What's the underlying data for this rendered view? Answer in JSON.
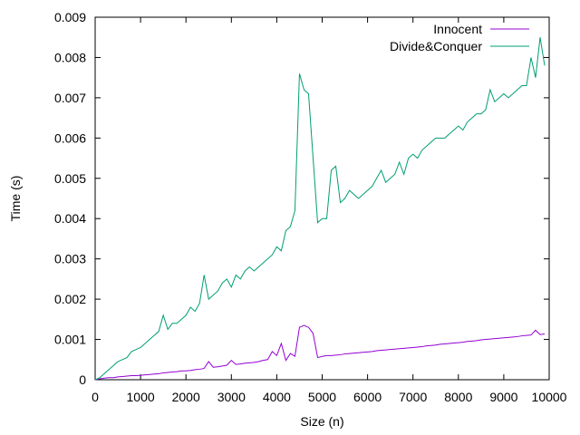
{
  "chart_data": {
    "type": "line",
    "title": "",
    "xlabel": "Size (n)",
    "ylabel": "Time (s)",
    "xlim": [
      0,
      10000
    ],
    "ylim": [
      0,
      0.009
    ],
    "xticks": [
      "0",
      "1000",
      "2000",
      "3000",
      "4000",
      "5000",
      "6000",
      "7000",
      "8000",
      "9000",
      "10000"
    ],
    "yticks": [
      "0",
      "0.001",
      "0.002",
      "0.003",
      "0.004",
      "0.005",
      "0.006",
      "0.007",
      "0.008",
      "0.009"
    ],
    "grid": false,
    "legend_position": "top-right",
    "series": [
      {
        "name": "Innocent",
        "color": "#9400d3",
        "points": [
          [
            0,
            0
          ],
          [
            100,
            2e-05
          ],
          [
            200,
            4e-05
          ],
          [
            300,
            5e-05
          ],
          [
            400,
            5e-05
          ],
          [
            500,
            7e-05
          ],
          [
            600,
            8e-05
          ],
          [
            700,
            9e-05
          ],
          [
            800,
            0.0001
          ],
          [
            900,
            0.0001
          ],
          [
            1000,
            0.00011
          ],
          [
            1100,
            0.00012
          ],
          [
            1200,
            0.00013
          ],
          [
            1300,
            0.00014
          ],
          [
            1400,
            0.00015
          ],
          [
            1500,
            0.00017
          ],
          [
            1600,
            0.00018
          ],
          [
            1700,
            0.00019
          ],
          [
            1800,
            0.0002
          ],
          [
            1900,
            0.00022
          ],
          [
            2000,
            0.00022
          ],
          [
            2100,
            0.00023
          ],
          [
            2200,
            0.00025
          ],
          [
            2300,
            0.00026
          ],
          [
            2400,
            0.00028
          ],
          [
            2500,
            0.00045
          ],
          [
            2600,
            0.00031
          ],
          [
            2700,
            0.00032
          ],
          [
            2800,
            0.00034
          ],
          [
            2900,
            0.00036
          ],
          [
            3000,
            0.00048
          ],
          [
            3100,
            0.00038
          ],
          [
            3200,
            0.00039
          ],
          [
            3300,
            0.00041
          ],
          [
            3400,
            0.00042
          ],
          [
            3500,
            0.00043
          ],
          [
            3600,
            0.00045
          ],
          [
            3700,
            0.00048
          ],
          [
            3800,
            0.0005
          ],
          [
            3900,
            0.0007
          ],
          [
            4000,
            0.0006
          ],
          [
            4100,
            0.0009
          ],
          [
            4200,
            0.00048
          ],
          [
            4300,
            0.00065
          ],
          [
            4400,
            0.00058
          ],
          [
            4500,
            0.0013
          ],
          [
            4600,
            0.00135
          ],
          [
            4700,
            0.0013
          ],
          [
            4800,
            0.00115
          ],
          [
            4900,
            0.00055
          ],
          [
            5000,
            0.00058
          ],
          [
            5100,
            0.0006
          ],
          [
            5200,
            0.0006
          ],
          [
            5300,
            0.00061
          ],
          [
            5400,
            0.00062
          ],
          [
            5500,
            0.00064
          ],
          [
            5600,
            0.00065
          ],
          [
            5700,
            0.00066
          ],
          [
            5800,
            0.00067
          ],
          [
            5900,
            0.00068
          ],
          [
            6000,
            0.00069
          ],
          [
            6100,
            0.0007
          ],
          [
            6200,
            0.00072
          ],
          [
            6300,
            0.00073
          ],
          [
            6400,
            0.00074
          ],
          [
            6500,
            0.00075
          ],
          [
            6600,
            0.00076
          ],
          [
            6700,
            0.00077
          ],
          [
            6800,
            0.00078
          ],
          [
            6900,
            0.00079
          ],
          [
            7000,
            0.0008
          ],
          [
            7100,
            0.00081
          ],
          [
            7200,
            0.00082
          ],
          [
            7300,
            0.00084
          ],
          [
            7400,
            0.00085
          ],
          [
            7500,
            0.00086
          ],
          [
            7600,
            0.00088
          ],
          [
            7700,
            0.00089
          ],
          [
            7800,
            0.0009
          ],
          [
            7900,
            0.00091
          ],
          [
            8000,
            0.00092
          ],
          [
            8100,
            0.00093
          ],
          [
            8200,
            0.00095
          ],
          [
            8300,
            0.00096
          ],
          [
            8400,
            0.00097
          ],
          [
            8500,
            0.00099
          ],
          [
            8600,
            0.001
          ],
          [
            8700,
            0.00101
          ],
          [
            8800,
            0.00102
          ],
          [
            8900,
            0.00103
          ],
          [
            9000,
            0.00104
          ],
          [
            9100,
            0.00105
          ],
          [
            9200,
            0.00106
          ],
          [
            9300,
            0.00107
          ],
          [
            9400,
            0.00109
          ],
          [
            9500,
            0.0011
          ],
          [
            9600,
            0.00111
          ],
          [
            9700,
            0.00123
          ],
          [
            9800,
            0.00112
          ],
          [
            9900,
            0.00114
          ]
        ]
      },
      {
        "name": "Divide&Conquer",
        "color": "#009e73",
        "points": [
          [
            0,
            0
          ],
          [
            100,
            5e-05
          ],
          [
            200,
            0.00015
          ],
          [
            300,
            0.00025
          ],
          [
            400,
            0.00035
          ],
          [
            500,
            0.00045
          ],
          [
            600,
            0.0005
          ],
          [
            700,
            0.00055
          ],
          [
            800,
            0.0007
          ],
          [
            900,
            0.00075
          ],
          [
            1000,
            0.0008
          ],
          [
            1100,
            0.0009
          ],
          [
            1200,
            0.001
          ],
          [
            1300,
            0.0011
          ],
          [
            1400,
            0.0012
          ],
          [
            1500,
            0.0016
          ],
          [
            1600,
            0.00125
          ],
          [
            1700,
            0.0014
          ],
          [
            1800,
            0.0014
          ],
          [
            1900,
            0.0015
          ],
          [
            2000,
            0.0016
          ],
          [
            2100,
            0.0018
          ],
          [
            2200,
            0.0017
          ],
          [
            2300,
            0.0019
          ],
          [
            2400,
            0.0026
          ],
          [
            2500,
            0.002
          ],
          [
            2600,
            0.0021
          ],
          [
            2700,
            0.0022
          ],
          [
            2800,
            0.0024
          ],
          [
            2900,
            0.0025
          ],
          [
            3000,
            0.0023
          ],
          [
            3100,
            0.0026
          ],
          [
            3200,
            0.0025
          ],
          [
            3300,
            0.0027
          ],
          [
            3400,
            0.0028
          ],
          [
            3500,
            0.0027
          ],
          [
            3600,
            0.0028
          ],
          [
            3700,
            0.0029
          ],
          [
            3800,
            0.003
          ],
          [
            3900,
            0.0031
          ],
          [
            4000,
            0.0033
          ],
          [
            4100,
            0.0032
          ],
          [
            4200,
            0.0037
          ],
          [
            4300,
            0.0038
          ],
          [
            4400,
            0.0042
          ],
          [
            4500,
            0.0076
          ],
          [
            4600,
            0.0072
          ],
          [
            4700,
            0.0071
          ],
          [
            4800,
            0.0055
          ],
          [
            4900,
            0.0039
          ],
          [
            5000,
            0.004
          ],
          [
            5100,
            0.004
          ],
          [
            5200,
            0.0052
          ],
          [
            5300,
            0.0053
          ],
          [
            5400,
            0.0044
          ],
          [
            5500,
            0.0045
          ],
          [
            5600,
            0.0047
          ],
          [
            5700,
            0.0046
          ],
          [
            5800,
            0.0045
          ],
          [
            5900,
            0.0046
          ],
          [
            6000,
            0.0047
          ],
          [
            6100,
            0.0048
          ],
          [
            6200,
            0.005
          ],
          [
            6300,
            0.0052
          ],
          [
            6400,
            0.0049
          ],
          [
            6500,
            0.005
          ],
          [
            6600,
            0.0051
          ],
          [
            6700,
            0.0054
          ],
          [
            6800,
            0.0051
          ],
          [
            6900,
            0.0055
          ],
          [
            7000,
            0.0056
          ],
          [
            7100,
            0.0055
          ],
          [
            7200,
            0.0057
          ],
          [
            7300,
            0.0058
          ],
          [
            7400,
            0.0059
          ],
          [
            7500,
            0.006
          ],
          [
            7600,
            0.006
          ],
          [
            7700,
            0.006
          ],
          [
            7800,
            0.0061
          ],
          [
            7900,
            0.0062
          ],
          [
            8000,
            0.0063
          ],
          [
            8100,
            0.0062
          ],
          [
            8200,
            0.0064
          ],
          [
            8300,
            0.0065
          ],
          [
            8400,
            0.0066
          ],
          [
            8500,
            0.0066
          ],
          [
            8600,
            0.0067
          ],
          [
            8700,
            0.0072
          ],
          [
            8800,
            0.0069
          ],
          [
            8900,
            0.007
          ],
          [
            9000,
            0.0071
          ],
          [
            9100,
            0.007
          ],
          [
            9200,
            0.0071
          ],
          [
            9300,
            0.0072
          ],
          [
            9400,
            0.0073
          ],
          [
            9500,
            0.0073
          ],
          [
            9600,
            0.008
          ],
          [
            9700,
            0.0075
          ],
          [
            9800,
            0.0085
          ],
          [
            9900,
            0.0078
          ]
        ]
      }
    ]
  }
}
